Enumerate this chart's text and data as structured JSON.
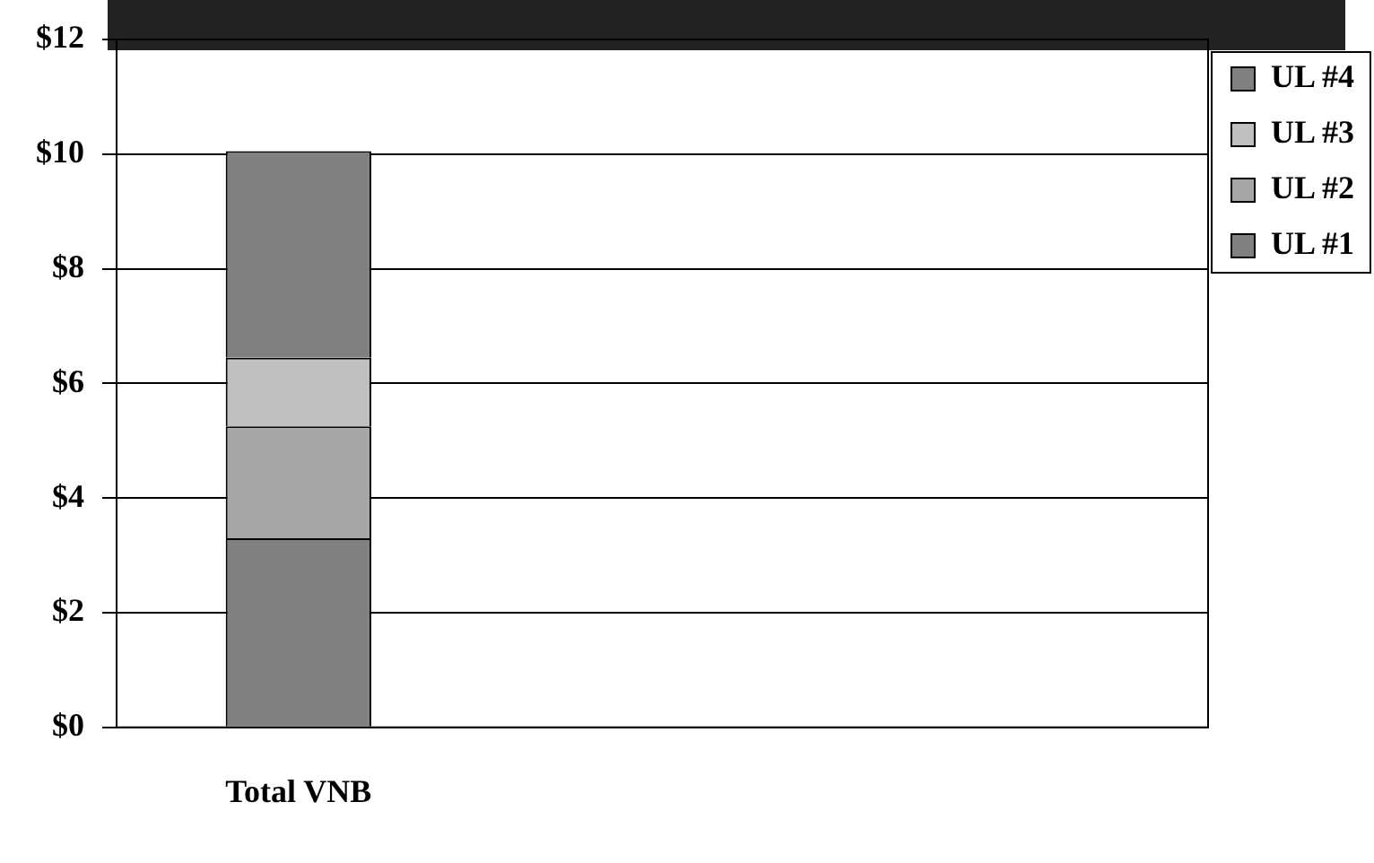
{
  "chart_data": {
    "type": "bar",
    "stacked": true,
    "categories": [
      "Total VNB",
      null,
      null
    ],
    "series": [
      {
        "name": "UL #1",
        "color": "#808080",
        "values": [
          3.3,
          null,
          null
        ]
      },
      {
        "name": "UL #2",
        "color": "#a6a6a6",
        "values": [
          1.95,
          null,
          null
        ]
      },
      {
        "name": "UL #3",
        "color": "#c0c0c0",
        "values": [
          1.2,
          null,
          null
        ]
      },
      {
        "name": "UL #4",
        "color": "#808080",
        "values": [
          3.6,
          null,
          null
        ]
      }
    ],
    "ylim": [
      0,
      12
    ],
    "yticks": [
      {
        "value": 0,
        "label": "$0"
      },
      {
        "value": 2,
        "label": "$2"
      },
      {
        "value": 4,
        "label": "$4"
      },
      {
        "value": 6,
        "label": "$6"
      },
      {
        "value": 8,
        "label": "$8"
      },
      {
        "value": 10,
        "label": "$10"
      },
      {
        "value": 12,
        "label": "$12"
      }
    ],
    "grid": "y",
    "legend": "right"
  }
}
